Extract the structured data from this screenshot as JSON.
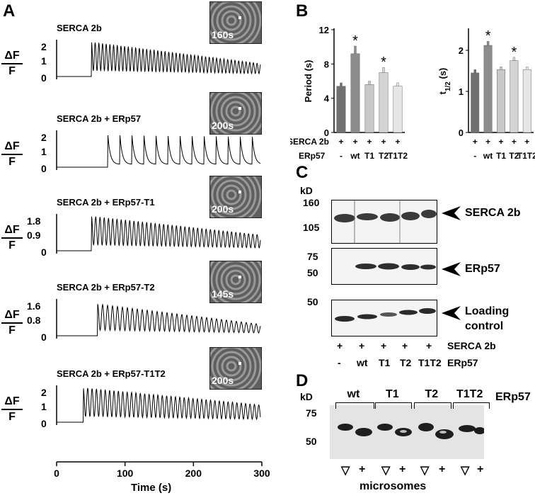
{
  "panels": {
    "a": "A",
    "b": "B",
    "c": "C",
    "d": "D"
  },
  "panel_a": {
    "df_top": "ΔF",
    "df_bottom": "F",
    "xlabel": "Time (s)",
    "xticks": [
      "0",
      "100",
      "200",
      "300"
    ],
    "traces": [
      {
        "title": "SERCA 2b",
        "inset_time": "160s",
        "yticks": [
          "2",
          "1",
          "0"
        ]
      },
      {
        "title": "SERCA 2b + ERp57",
        "inset_time": "200s",
        "yticks": [
          "2",
          "1",
          "0"
        ]
      },
      {
        "title": "SERCA 2b + ERp57-T1",
        "inset_time": "200s",
        "yticks": [
          "1.8",
          "0.9",
          "0"
        ]
      },
      {
        "title": "SERCA 2b + ERp57-T2",
        "inset_time": "145s",
        "yticks": [
          "1.6",
          "0.8",
          "0"
        ]
      },
      {
        "title": "SERCA 2b + ERp57-T1T2",
        "inset_time": "200s",
        "yticks": [
          "2",
          "1",
          "0"
        ]
      }
    ]
  },
  "panel_b": {
    "row_serca": "SERCA 2b",
    "row_erp": "ERp57",
    "serca_marks": [
      "+",
      "+",
      "+",
      "+",
      "+"
    ],
    "erp_marks": [
      "-",
      "wt",
      "T1",
      "T2",
      "T1T2"
    ],
    "star": "*"
  },
  "chart_data": [
    {
      "type": "bar",
      "categories": [
        "-",
        "wt",
        "T1",
        "T2",
        "T1T2"
      ],
      "values": [
        5.4,
        9.2,
        5.6,
        7.0,
        5.4
      ],
      "errors": [
        0.4,
        0.9,
        0.4,
        0.6,
        0.4
      ],
      "significant": [
        false,
        true,
        false,
        true,
        false
      ],
      "ylabel": "Period (s)",
      "yticks": [
        "12",
        "8",
        "4",
        "0"
      ],
      "ylim": [
        0,
        12
      ],
      "colors": [
        "#707070",
        "#8c8c8c",
        "#c8c8c8",
        "#d4d4d4",
        "#e6e6e6"
      ]
    },
    {
      "type": "bar",
      "categories": [
        "-",
        "wt",
        "T1",
        "T2",
        "T1T2"
      ],
      "values": [
        1.45,
        2.12,
        1.53,
        1.75,
        1.53
      ],
      "errors": [
        0.08,
        0.1,
        0.07,
        0.08,
        0.07
      ],
      "significant": [
        false,
        true,
        false,
        true,
        false
      ],
      "ylabel": "t1/2 (s)",
      "yticks": [
        "2",
        "1",
        "0"
      ],
      "ylim": [
        0,
        2.5
      ],
      "colors": [
        "#707070",
        "#8c8c8c",
        "#c8c8c8",
        "#d4d4d4",
        "#e6e6e6"
      ]
    }
  ],
  "panel_c": {
    "kd": "kD",
    "mw": [
      "160",
      "105",
      "75",
      "50",
      "50"
    ],
    "bands": [
      "SERCA 2b",
      "ERp57",
      "Loading",
      "control"
    ],
    "row_serca": "SERCA 2b",
    "row_erp": "ERp57",
    "serca_marks": [
      "+",
      "+",
      "+",
      "+",
      "+"
    ],
    "erp_marks": [
      "-",
      "wt",
      "T1",
      "T2",
      "T1T2"
    ]
  },
  "panel_d": {
    "kd": "kD",
    "mw": [
      "75",
      "50"
    ],
    "groups": [
      "wt",
      "T1",
      "T2",
      "T1T2"
    ],
    "group_label": "ERp57",
    "lane_marks": [
      "▽",
      "+",
      "▽",
      "+",
      "▽",
      "+",
      "▽",
      "+"
    ],
    "xlabel": "microsomes"
  }
}
